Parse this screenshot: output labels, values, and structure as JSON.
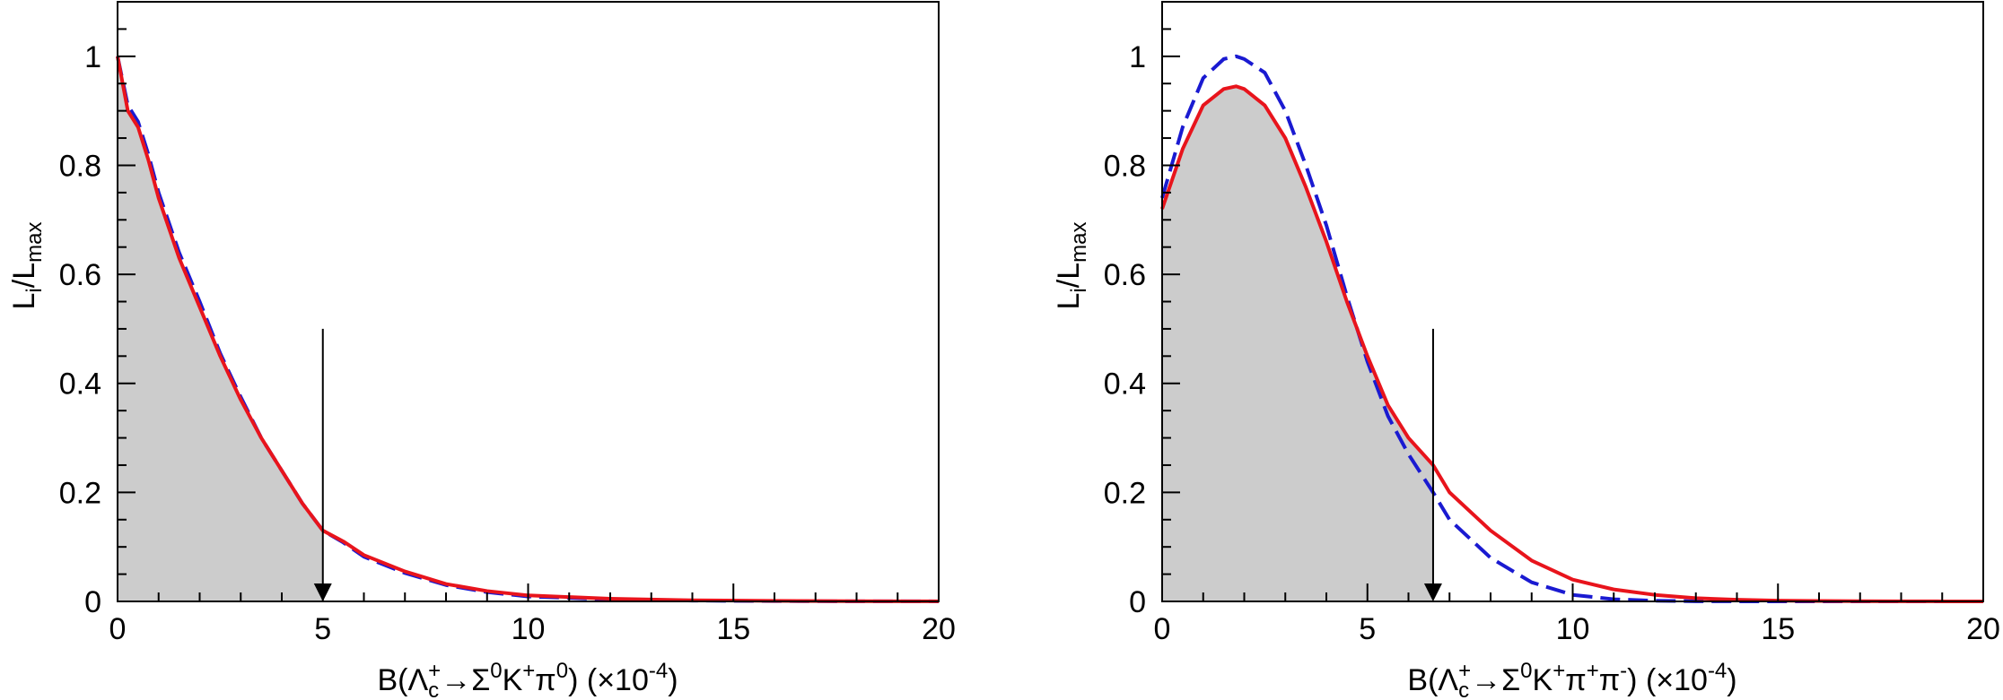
{
  "chart_data": [
    {
      "type": "line",
      "panel": "left",
      "ylabel": {
        "main": "L",
        "sub1": "i",
        "mid": "/L",
        "sub2": "max"
      },
      "xlabel": {
        "prefix": "B(Λ",
        "sub": "c",
        "sup": "+",
        "rest": "→Σ",
        "sup2": "0",
        "rest2": "K",
        "sup3": "+",
        "rest3": "π",
        "sup4": "0",
        "suffix": ") (×10",
        "exp": "-4",
        "close": ")"
      },
      "xlim": [
        0,
        20
      ],
      "ylim": [
        0,
        1.1
      ],
      "xticks": [
        "0",
        "5",
        "10",
        "15",
        "20"
      ],
      "yticks": [
        "0",
        "0.2",
        "0.4",
        "0.6",
        "0.8",
        "1"
      ],
      "grid": false,
      "upper_limit": 5.0,
      "series": [
        {
          "style": "solid",
          "color": "#e8141c",
          "x": [
            0,
            0.25,
            0.5,
            0.75,
            1,
            1.5,
            2,
            2.5,
            3,
            3.5,
            4,
            4.5,
            5,
            5.5,
            6,
            7,
            8,
            9,
            10,
            12,
            14,
            16,
            18,
            20
          ],
          "values": [
            1.0,
            0.9,
            0.87,
            0.81,
            0.74,
            0.63,
            0.54,
            0.45,
            0.37,
            0.3,
            0.24,
            0.18,
            0.13,
            0.11,
            0.085,
            0.055,
            0.032,
            0.019,
            0.011,
            0.005,
            0.002,
            0.001,
            0.0005,
            0.0002
          ]
        },
        {
          "style": "dashed",
          "color": "#1a1ad1",
          "x": [
            0,
            0.25,
            0.5,
            0.75,
            1,
            1.5,
            2,
            2.5,
            3,
            3.5,
            4,
            4.5,
            5,
            5.5,
            6,
            7,
            8,
            9,
            10,
            12,
            14,
            16,
            18,
            20
          ],
          "values": [
            1.0,
            0.91,
            0.88,
            0.82,
            0.75,
            0.64,
            0.55,
            0.455,
            0.375,
            0.3,
            0.24,
            0.18,
            0.13,
            0.108,
            0.082,
            0.052,
            0.03,
            0.017,
            0.009,
            0.004,
            0.0015,
            0.0006,
            0.0002,
            0.0001
          ]
        }
      ]
    },
    {
      "type": "line",
      "panel": "right",
      "ylabel": {
        "main": "L",
        "sub1": "i",
        "mid": "/L",
        "sub2": "max"
      },
      "xlabel": {
        "prefix": "B(Λ",
        "sub": "c",
        "sup": "+",
        "rest": "→Σ",
        "sup2": "0",
        "rest2": "K",
        "sup3": "+",
        "rest3": "π",
        "sup4": "+",
        "rest4": "π",
        "sup5": "-",
        "suffix": ") (×10",
        "exp": "-4",
        "close": ")"
      },
      "xlim": [
        0,
        20
      ],
      "ylim": [
        0,
        1.1
      ],
      "xticks": [
        "0",
        "5",
        "10",
        "15",
        "20"
      ],
      "yticks": [
        "0",
        "0.2",
        "0.4",
        "0.6",
        "0.8",
        "1"
      ],
      "grid": false,
      "upper_limit": 6.6,
      "series": [
        {
          "style": "solid",
          "color": "#e8141c",
          "x": [
            0,
            0.5,
            1,
            1.5,
            1.8,
            2,
            2.5,
            3,
            3.5,
            4,
            4.5,
            5,
            5.5,
            6,
            6.6,
            7,
            8,
            9,
            10,
            11,
            12,
            13,
            14,
            15,
            16,
            17,
            18,
            19,
            20
          ],
          "values": [
            0.72,
            0.83,
            0.91,
            0.94,
            0.945,
            0.94,
            0.91,
            0.85,
            0.76,
            0.66,
            0.55,
            0.45,
            0.36,
            0.3,
            0.25,
            0.2,
            0.13,
            0.075,
            0.04,
            0.022,
            0.012,
            0.006,
            0.003,
            0.0015,
            0.0008,
            0.0004,
            0.0002,
            0.0001,
            0.0001
          ]
        },
        {
          "style": "dashed",
          "color": "#1a1ad1",
          "x": [
            0,
            0.5,
            1,
            1.5,
            1.8,
            2,
            2.5,
            3,
            3.5,
            4,
            4.5,
            5,
            5.5,
            6,
            6.6,
            7,
            8,
            9,
            10,
            11,
            12,
            13,
            14,
            15,
            16,
            17,
            18,
            19,
            20
          ],
          "values": [
            0.74,
            0.87,
            0.96,
            0.995,
            1.0,
            0.995,
            0.97,
            0.9,
            0.8,
            0.69,
            0.56,
            0.44,
            0.34,
            0.27,
            0.2,
            0.15,
            0.08,
            0.035,
            0.012,
            0.004,
            0.0012,
            0.0003,
            0.0001,
            0.0,
            0.0,
            0.0,
            0.0,
            0.0,
            0.0
          ]
        }
      ]
    }
  ]
}
